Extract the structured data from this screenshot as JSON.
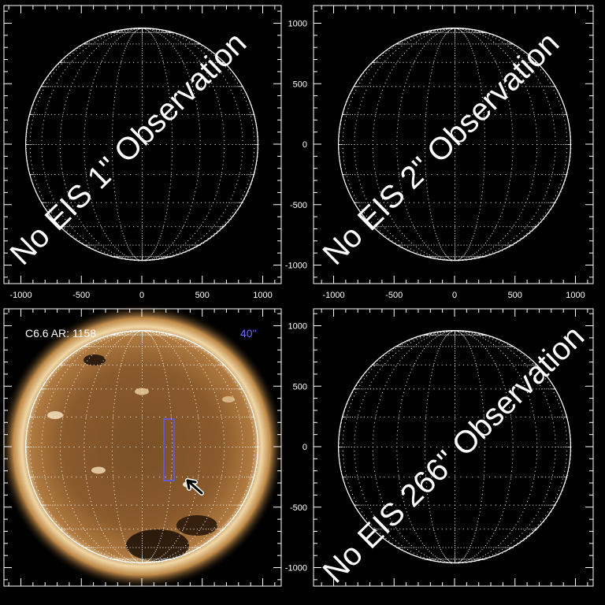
{
  "axes": {
    "ticks": [
      "-1000",
      "-500",
      "0",
      "500",
      "1000"
    ],
    "tick_values": [
      -1000,
      -500,
      0,
      500,
      1000
    ],
    "range": [
      -1150,
      1150
    ]
  },
  "panels": [
    {
      "id": "top-left",
      "overlay_text": "No EIS 1\" Observation",
      "show_x_labels": true,
      "show_y_labels": false,
      "image": false
    },
    {
      "id": "top-right",
      "overlay_text": "No EIS 2\" Observation",
      "show_x_labels": true,
      "show_y_labels": true,
      "image": false
    },
    {
      "id": "bottom-left",
      "label": "C6.6 AR: 1158",
      "slit_label": "40\"",
      "show_x_labels": false,
      "show_y_labels": false,
      "image": true
    },
    {
      "id": "bottom-right",
      "overlay_text": "No EIS 266\" Observation",
      "show_x_labels": false,
      "show_y_labels": true,
      "image": false
    }
  ],
  "colors": {
    "slit_box": "#5a5aff",
    "grid": "#ffffff",
    "label_blue": "#6a6aff"
  },
  "solar_radius_arcsec": 960
}
